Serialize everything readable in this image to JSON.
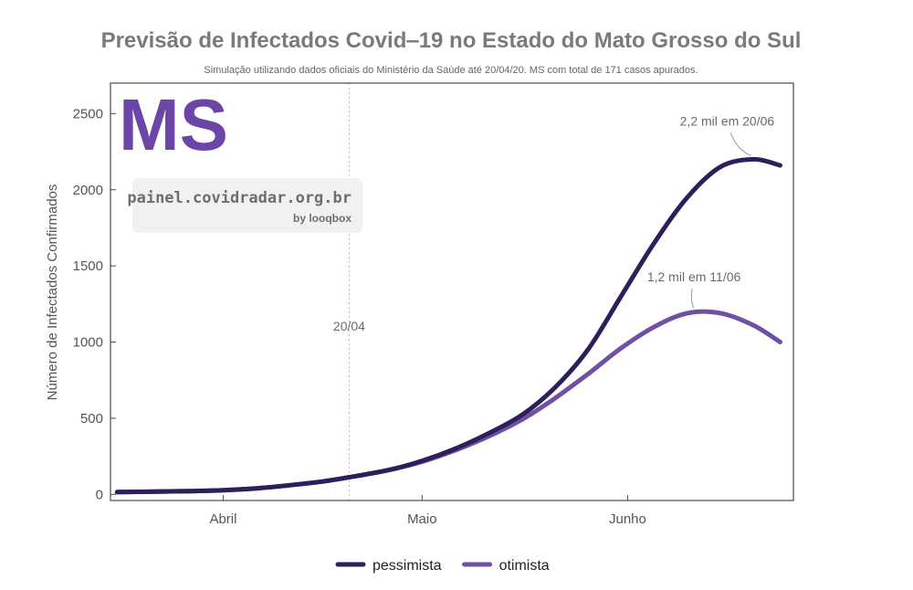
{
  "colors": {
    "pessimista": "#2e1f5a",
    "otimista": "#6f50a3",
    "brand": "#6b46a8"
  },
  "chart_data": {
    "type": "line",
    "title": "Previsão de Infectados Covid‒19 no Estado do Mato Grosso do Sul",
    "subtitle": "Simulação utilizando dados oficiais do Ministério da Saúde até 20/04/20. MS com total de 171 casos apurados.",
    "brand": "MS",
    "watermark": {
      "line1": "painel.covidradar.org.br",
      "line2": "by looqbox"
    },
    "ylabel": "Número de Infectados Confirmados",
    "xlabel": "",
    "x_domain_days": [
      -17,
      86
    ],
    "ylim": [
      -40,
      2700
    ],
    "yticks": [
      0,
      500,
      1000,
      1500,
      2000,
      2500
    ],
    "xticks": [
      {
        "label": "Abril",
        "day": 0
      },
      {
        "label": "Maio",
        "day": 30
      },
      {
        "label": "Junho",
        "day": 61
      }
    ],
    "reference_line": {
      "day": 19,
      "label": "20/04"
    },
    "annotations": [
      {
        "text": "2,2 mil em 20/06",
        "series": "pessimista",
        "day": 80,
        "value": 2200
      },
      {
        "text": "1,2 mil em 11/06",
        "series": "otimista",
        "day": 71,
        "value": 1200
      }
    ],
    "series": [
      {
        "name": "pessimista",
        "x": [
          -16,
          -10,
          -5,
          0,
          5,
          10,
          15,
          20,
          25,
          30,
          35,
          40,
          45,
          50,
          55,
          60,
          65,
          70,
          75,
          80,
          84
        ],
        "values": [
          15,
          18,
          22,
          28,
          40,
          60,
          85,
          120,
          160,
          220,
          300,
          400,
          520,
          700,
          950,
          1300,
          1650,
          1950,
          2150,
          2200,
          2160
        ]
      },
      {
        "name": "otimista",
        "x": [
          -16,
          -10,
          -5,
          0,
          5,
          10,
          15,
          20,
          25,
          30,
          35,
          40,
          45,
          50,
          55,
          60,
          65,
          70,
          75,
          80,
          84
        ],
        "values": [
          15,
          18,
          22,
          28,
          40,
          60,
          85,
          120,
          160,
          215,
          290,
          380,
          490,
          630,
          790,
          960,
          1100,
          1190,
          1190,
          1110,
          1000
        ]
      }
    ]
  }
}
